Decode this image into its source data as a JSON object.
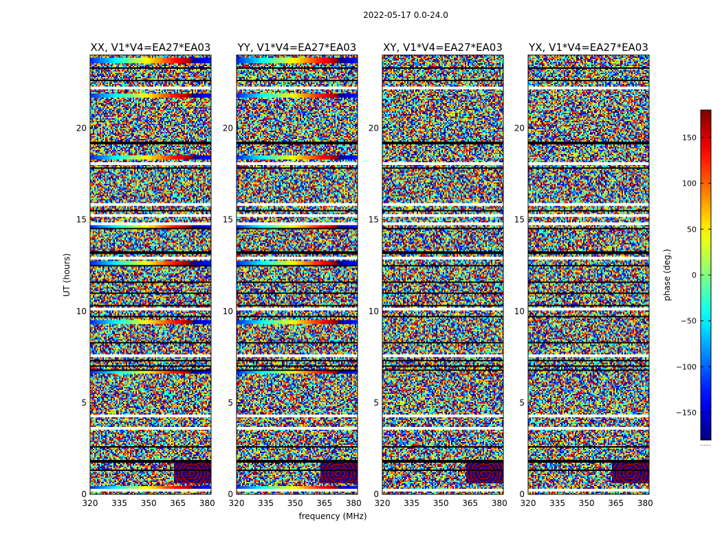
{
  "figure": {
    "title": "2022-05-17 0.0-24.0",
    "xlabel": "frequency (MHz)",
    "ylabel": "UT (hours)",
    "colorbar_label": "phase (deg.)",
    "colorbar_footer": "......"
  },
  "chart_data": {
    "type": "heatmap",
    "title": "2022-05-17 0.0-24.0",
    "xlabel": "frequency (MHz)",
    "ylabel": "UT (hours)",
    "xlim": [
      320,
      382
    ],
    "ylim": [
      0,
      24
    ],
    "xticks": [
      320,
      335,
      350,
      365,
      380
    ],
    "yticks": [
      0,
      5,
      10,
      15,
      20
    ],
    "colorbar": {
      "label": "phase (deg.)",
      "range": [
        -180,
        180
      ],
      "ticks": [
        150,
        100,
        50,
        0,
        -50,
        -100,
        -150
      ],
      "tick_labels": [
        "150",
        "100",
        "50",
        "0",
        "−50",
        "−100",
        "−150"
      ],
      "colormap": "jet"
    },
    "panels": [
      {
        "title": "XX, V1*V4=EA27*EA03",
        "coherent_bands": true
      },
      {
        "title": "YY, V1*V4=EA27*EA03",
        "coherent_bands": true
      },
      {
        "title": "XY, V1*V4=EA27*EA03",
        "coherent_bands": false
      },
      {
        "title": "YX, V1*V4=EA27*EA03",
        "coherent_bands": false
      }
    ],
    "blank_rows_ut": [
      22.2,
      18.1,
      15.8,
      15.2,
      14.8,
      12.9,
      10.1,
      7.6,
      4.25,
      3.6,
      0.25
    ],
    "black_rows_ut": [
      23.3,
      22.6,
      19.2,
      17.8,
      15.5,
      14.5,
      13.2,
      12.5,
      11.6,
      11.0,
      10.3,
      9.7,
      8.3,
      7.3,
      7.0,
      6.8,
      2.6,
      1.8,
      1.3
    ],
    "coherent_band_ut": [
      23.7,
      21.8,
      18.4,
      14.7,
      12.6,
      9.4,
      6.7,
      0.3
    ],
    "fringe_region": {
      "freq_range": [
        363,
        382
      ],
      "ut_range": [
        0.6,
        1.7
      ]
    }
  }
}
